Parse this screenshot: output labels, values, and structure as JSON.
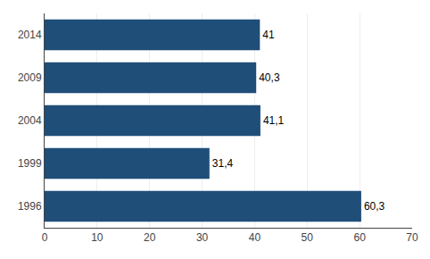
{
  "chart_data": {
    "type": "bar",
    "orientation": "horizontal",
    "categories": [
      "1996",
      "1999",
      "2004",
      "2009",
      "2014"
    ],
    "values": [
      60.3,
      31.4,
      41.1,
      40.3,
      41
    ],
    "value_labels": [
      "60,3",
      "31,4",
      "41,1",
      "40,3",
      "41"
    ],
    "data_labels": true,
    "color": "#1F4E79",
    "xlim": [
      0,
      70
    ],
    "xticks": [
      0,
      10,
      20,
      30,
      40,
      50,
      60,
      70
    ],
    "grid": true
  }
}
